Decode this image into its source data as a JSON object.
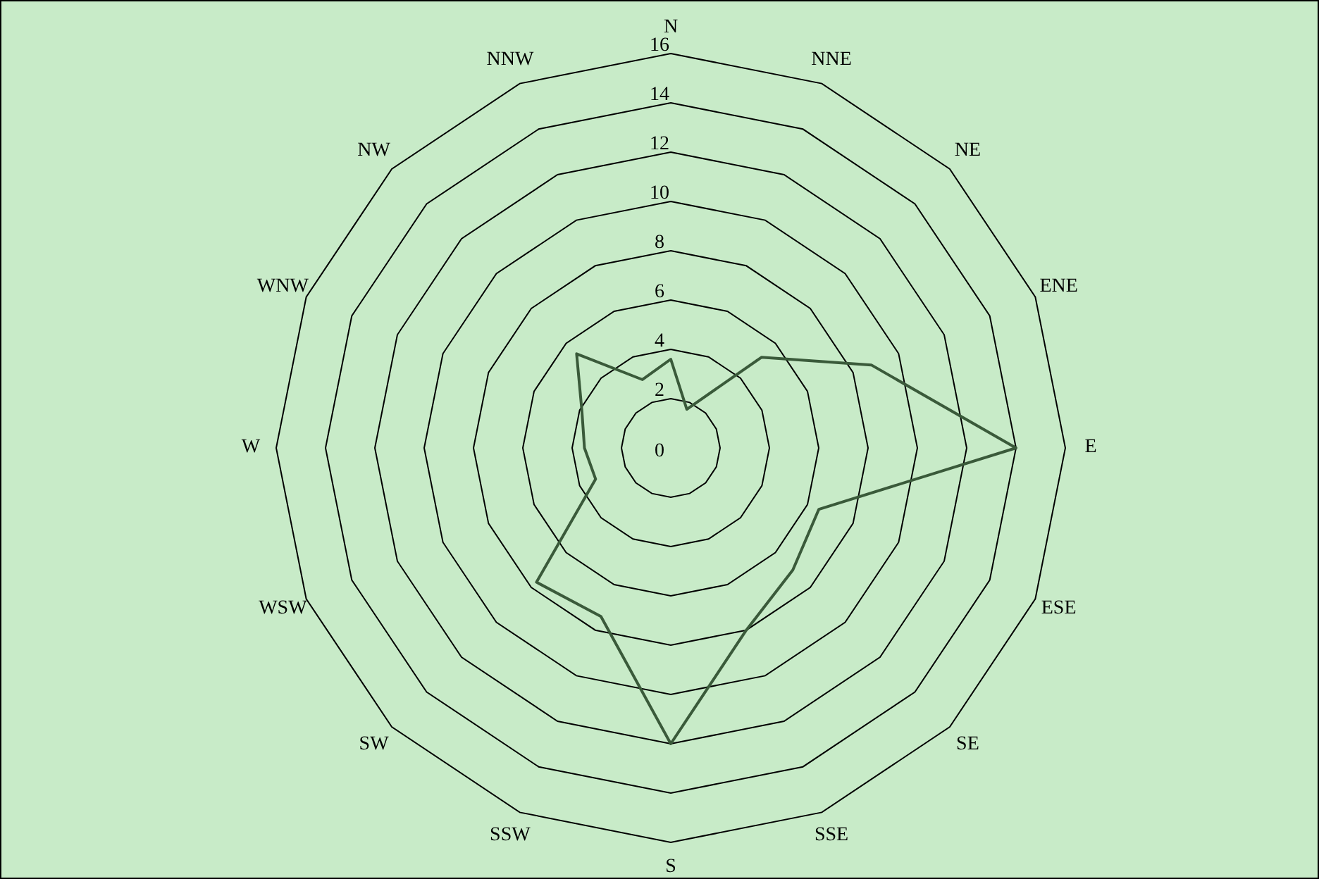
{
  "chart_data": {
    "type": "radar",
    "categories": [
      "N",
      "NNE",
      "NE",
      "ENE",
      "E",
      "ESE",
      "SE",
      "SSE",
      "S",
      "SSW",
      "SW",
      "WSW",
      "W",
      "WNW",
      "NW",
      "NNW"
    ],
    "series": [
      {
        "color": "#3a5a3a",
        "values": [
          3.6,
          1.7,
          5.2,
          8.8,
          14,
          6.5,
          7,
          8,
          12,
          7.4,
          7.7,
          3.3,
          3.5,
          3.9,
          5.4,
          3.0
        ]
      }
    ],
    "ylim": [
      0,
      16
    ],
    "yticks": [
      0,
      2,
      4,
      6,
      8,
      10,
      12,
      14,
      16
    ],
    "grid": true,
    "marker": "none",
    "line_style": "solid"
  }
}
